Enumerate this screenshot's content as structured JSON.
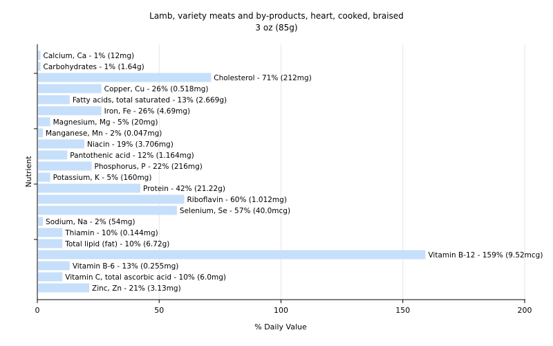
{
  "chart_data": {
    "type": "bar",
    "orientation": "horizontal",
    "title": "Lamb, variety meats and by-products, heart, cooked, braised",
    "subtitle": "3 oz (85g)",
    "xlabel": "% Daily Value",
    "ylabel": "Nutrient",
    "xlim": [
      0,
      200
    ],
    "xticks": [
      "0",
      "50",
      "100",
      "150",
      "200"
    ],
    "grid": true,
    "bar_color": "#c6dffa",
    "categories": [
      "Calcium, Ca",
      "Carbohydrates",
      "Cholesterol",
      "Copper, Cu",
      "Fatty acids, total saturated",
      "Iron, Fe",
      "Magnesium, Mg",
      "Manganese, Mn",
      "Niacin",
      "Pantothenic acid",
      "Phosphorus, P",
      "Potassium, K",
      "Protein",
      "Riboflavin",
      "Selenium, Se",
      "Sodium, Na",
      "Thiamin",
      "Total lipid (fat)",
      "Vitamin B-12",
      "Vitamin B-6",
      "Vitamin C, total ascorbic acid",
      "Zinc, Zn"
    ],
    "values": [
      1,
      1,
      71,
      26,
      13,
      26,
      5,
      2,
      19,
      12,
      22,
      5,
      42,
      60,
      57,
      2,
      10,
      10,
      159,
      13,
      10,
      21
    ],
    "labels": [
      "Calcium, Ca - 1% (12mg)",
      "Carbohydrates - 1% (1.64g)",
      "Cholesterol - 71% (212mg)",
      "Copper, Cu - 26% (0.518mg)",
      "Fatty acids, total saturated - 13% (2.669g)",
      "Iron, Fe - 26% (4.69mg)",
      "Magnesium, Mg - 5% (20mg)",
      "Manganese, Mn - 2% (0.047mg)",
      "Niacin - 19% (3.706mg)",
      "Pantothenic acid - 12% (1.164mg)",
      "Phosphorus, P - 22% (216mg)",
      "Potassium, K - 5% (160mg)",
      "Protein - 42% (21.22g)",
      "Riboflavin - 60% (1.012mg)",
      "Selenium, Se - 57% (40.0mcg)",
      "Sodium, Na - 2% (54mg)",
      "Thiamin - 10% (0.144mg)",
      "Total lipid (fat) - 10% (6.72g)",
      "Vitamin B-12 - 159% (9.52mcg)",
      "Vitamin B-6 - 13% (0.255mg)",
      "Vitamin C, total ascorbic acid - 10% (6.0mg)",
      "Zinc, Zn - 21% (3.13mg)"
    ]
  }
}
